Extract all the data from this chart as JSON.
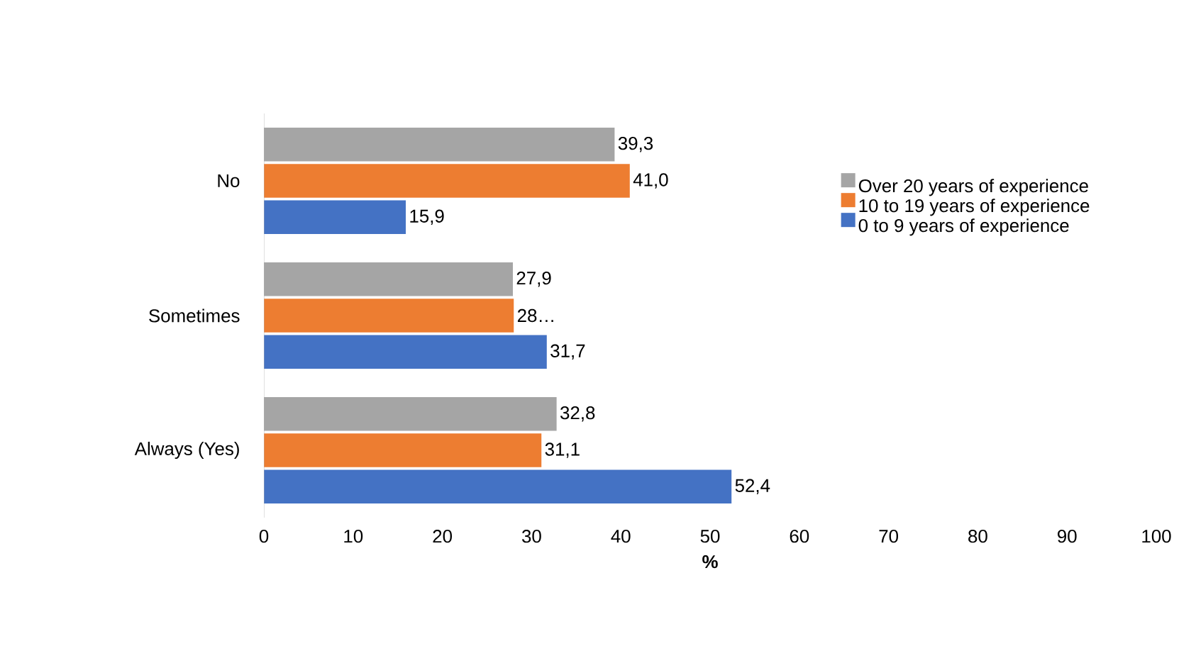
{
  "chart_data": {
    "type": "bar",
    "orientation": "horizontal",
    "categories": [
      "No",
      "Sometimes",
      "Always (Yes)"
    ],
    "series": [
      {
        "name": "Over 20 years of experience",
        "color": "#a5a5a5",
        "values": [
          39.3,
          27.9,
          32.8
        ],
        "value_labels": [
          "39,3",
          "27,9",
          "32,8"
        ]
      },
      {
        "name": "10 to 19 years of experience",
        "color": "#ed7d31",
        "values": [
          41.0,
          28,
          31.1
        ],
        "value_labels": [
          "41,0",
          "28…",
          "31,1"
        ]
      },
      {
        "name": "0 to 9 years of experience",
        "color": "#4472c4",
        "values": [
          15.9,
          31.7,
          52.4
        ],
        "value_labels": [
          "15,9",
          "31,7",
          "52,4"
        ]
      }
    ],
    "xlim": [
      0,
      100
    ],
    "xticks": [
      0,
      10,
      20,
      30,
      40,
      50,
      60,
      70,
      80,
      90,
      100
    ],
    "xlabel": "%",
    "legend": "top right",
    "grid": false
  }
}
